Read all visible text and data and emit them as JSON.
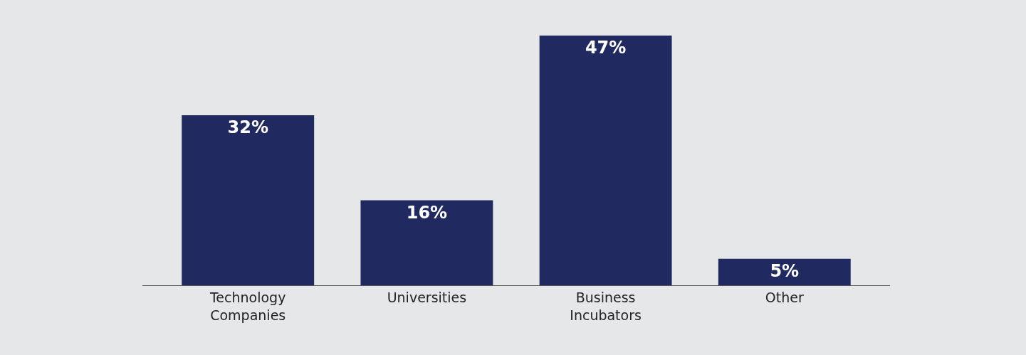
{
  "chart_data": {
    "type": "bar",
    "categories": [
      "Technology\nCompanies",
      "Universities",
      "Business\nIncubators",
      "Other"
    ],
    "values": [
      32,
      16,
      47,
      5
    ],
    "value_labels": [
      "32%",
      "16%",
      "47%",
      "5%"
    ],
    "color": "#202a60",
    "tick_labels": "x",
    "grid": false,
    "legend": false
  }
}
